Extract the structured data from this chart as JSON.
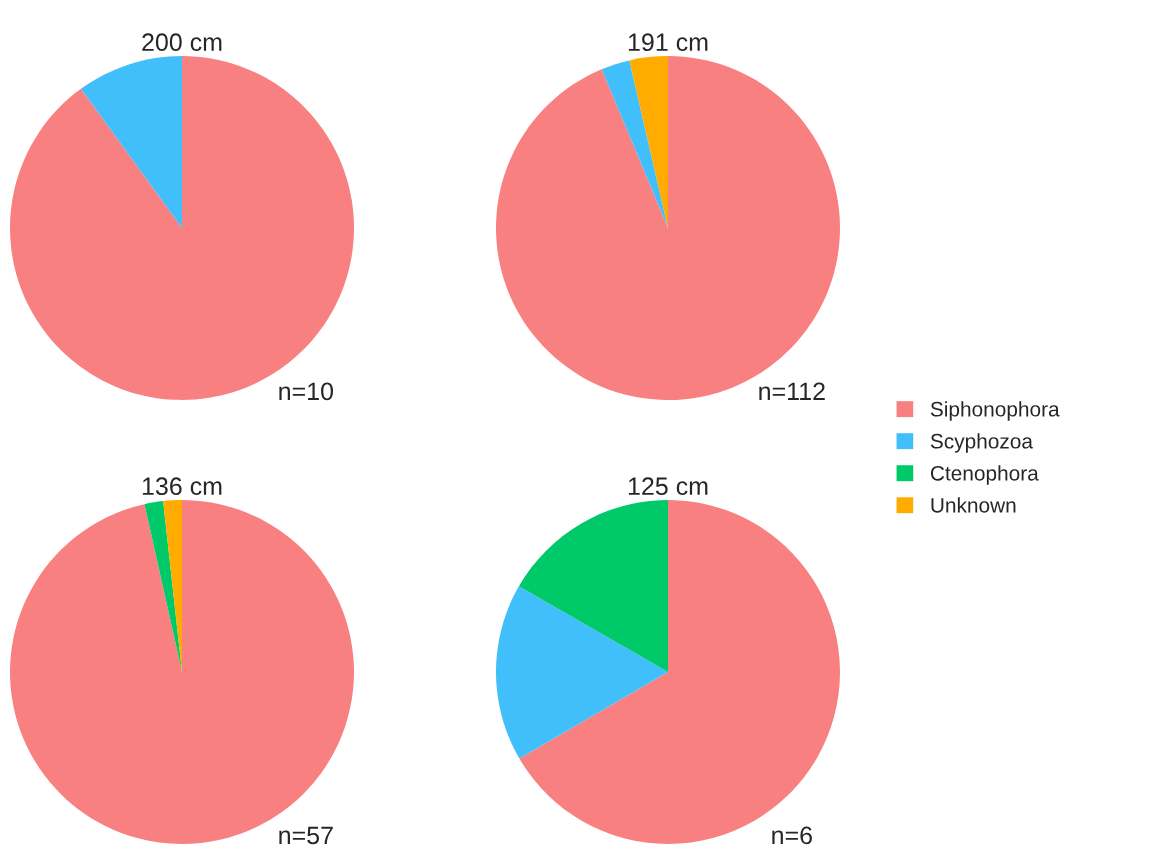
{
  "chart_data": [
    {
      "type": "pie",
      "title": "200 cm",
      "categories": [
        "Siphonophora",
        "Scyphozoa",
        "Ctenophora",
        "Unknown"
      ],
      "values": [
        90,
        10,
        0,
        0
      ],
      "colors": [
        "#f88080",
        "#41bffb",
        "#00c96a",
        "#ffab00"
      ],
      "annotations": [
        "n=10"
      ],
      "legend": "right"
    },
    {
      "type": "pie",
      "title": "191 cm",
      "categories": [
        null,
        null,
        null,
        null
      ],
      "values": [
        93.7,
        2.7,
        0,
        3.6
      ],
      "colors": [
        "#f88080",
        "#41bffb",
        "#00c96a",
        "#ffab00"
      ],
      "annotations": [
        "n=112"
      ]
    },
    {
      "type": "pie",
      "title": "136 cm",
      "categories": [
        null,
        null,
        null,
        null
      ],
      "values": [
        96.5,
        0,
        1.75,
        1.75
      ],
      "colors": [
        "#f88080",
        "#41bffb",
        "#00c96a",
        "#ffab00"
      ],
      "annotations": [
        "n=57"
      ]
    },
    {
      "type": "pie",
      "title": "125 cm",
      "categories": [
        null,
        null,
        null,
        null
      ],
      "values": [
        66.6,
        16.7,
        16.7,
        0
      ],
      "colors": [
        "#f88080",
        "#41bffb",
        "#00c96a",
        "#ffab00"
      ],
      "annotations": [
        "n=6"
      ]
    }
  ]
}
